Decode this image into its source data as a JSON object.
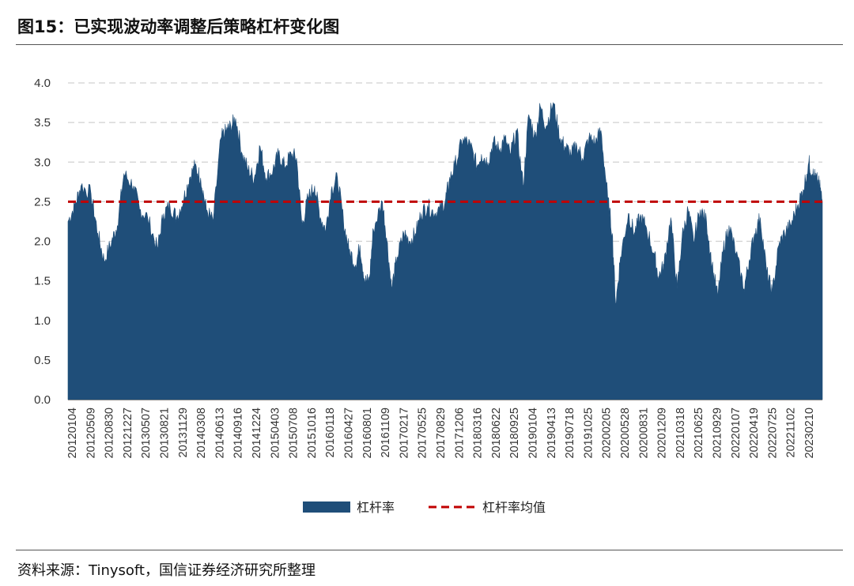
{
  "header": {
    "title": "图15：已实现波动率调整后策略杠杆变化图"
  },
  "footer": {
    "source": "资料来源：Tinysoft，国信证券经济研究所整理"
  },
  "colors": {
    "area": "#1f4e79",
    "mean_line": "#c00000",
    "grid": "#d0d0d0",
    "axis": "#888888"
  },
  "chart_data": {
    "type": "area",
    "title": "图15：已实现波动率调整后策略杠杆变化图",
    "xlabel": "",
    "ylabel": "",
    "ylim": [
      0,
      4.0
    ],
    "yticks": [
      "0.0",
      "0.5",
      "1.0",
      "1.5",
      "2.0",
      "2.5",
      "3.0",
      "3.5",
      "4.0"
    ],
    "grid": "horizontal dashed",
    "legend_position": "bottom",
    "x_tick_labels": [
      "20120104",
      "20120509",
      "20120830",
      "20121227",
      "20130507",
      "20130821",
      "20131129",
      "20140308",
      "20140613",
      "20140916",
      "20141224",
      "20150403",
      "20150708",
      "20151016",
      "20160118",
      "20160427",
      "20160801",
      "20161109",
      "20170217",
      "20170525",
      "20170829",
      "20171206",
      "20180316",
      "20180622",
      "20180925",
      "20190104",
      "20190413",
      "20190718",
      "20191025",
      "20200205",
      "20200528",
      "20200831",
      "20201209",
      "20210318",
      "20210625",
      "20210929",
      "20220107",
      "20220419",
      "20220725",
      "20221102",
      "20230210"
    ],
    "series": [
      {
        "name": "杠杆率",
        "kind": "area",
        "points": [
          [
            "20120104",
            2.25
          ],
          [
            "20120210",
            2.45
          ],
          [
            "20120315",
            2.7
          ],
          [
            "20120509",
            2.6
          ],
          [
            "20120615",
            2.1
          ],
          [
            "20120720",
            1.75
          ],
          [
            "20120830",
            2.0
          ],
          [
            "20120930",
            2.2
          ],
          [
            "20121105",
            2.85
          ],
          [
            "20121227",
            2.7
          ],
          [
            "20130130",
            2.4
          ],
          [
            "20130315",
            2.3
          ],
          [
            "20130507",
            1.9
          ],
          [
            "20130610",
            2.35
          ],
          [
            "20130715",
            2.45
          ],
          [
            "20130821",
            2.3
          ],
          [
            "20130930",
            2.55
          ],
          [
            "20131030",
            2.8
          ],
          [
            "20131129",
            2.95
          ],
          [
            "20131230",
            2.8
          ],
          [
            "20140130",
            2.4
          ],
          [
            "20140308",
            2.25
          ],
          [
            "20140420",
            3.3
          ],
          [
            "20140520",
            3.4
          ],
          [
            "20140613",
            3.45
          ],
          [
            "20140710",
            3.55
          ],
          [
            "20140815",
            3.1
          ],
          [
            "20140916",
            2.9
          ],
          [
            "20141020",
            2.8
          ],
          [
            "20141120",
            3.2
          ],
          [
            "20141224",
            2.8
          ],
          [
            "20150130",
            2.9
          ],
          [
            "20150301",
            3.1
          ],
          [
            "20150403",
            2.95
          ],
          [
            "20150510",
            3.1
          ],
          [
            "20150608",
            3.05
          ],
          [
            "20150708",
            2.2
          ],
          [
            "20150810",
            2.55
          ],
          [
            "20150915",
            2.7
          ],
          [
            "20151016",
            2.3
          ],
          [
            "20151115",
            2.15
          ],
          [
            "20151215",
            2.65
          ],
          [
            "20160118",
            2.8
          ],
          [
            "20160220",
            2.25
          ],
          [
            "20160320",
            1.9
          ],
          [
            "20160427",
            1.7
          ],
          [
            "20160520",
            1.95
          ],
          [
            "20160615",
            1.5
          ],
          [
            "20160710",
            1.5
          ],
          [
            "20160801",
            2.15
          ],
          [
            "20160920",
            2.5
          ],
          [
            "20161015",
            2.0
          ],
          [
            "20161109",
            1.4
          ],
          [
            "20161210",
            1.8
          ],
          [
            "20170115",
            2.1
          ],
          [
            "20170217",
            2.0
          ],
          [
            "20170320",
            2.1
          ],
          [
            "20170420",
            2.35
          ],
          [
            "20170525",
            2.45
          ],
          [
            "20170630",
            2.35
          ],
          [
            "20170730",
            2.4
          ],
          [
            "20170829",
            2.5
          ],
          [
            "20170920",
            2.75
          ],
          [
            "20171020",
            2.95
          ],
          [
            "20171206",
            3.3
          ],
          [
            "20180115",
            3.2
          ],
          [
            "20180220",
            2.95
          ],
          [
            "20180316",
            3.1
          ],
          [
            "20180420",
            3.0
          ],
          [
            "20180520",
            3.25
          ],
          [
            "20180622",
            3.15
          ],
          [
            "20180720",
            3.3
          ],
          [
            "20180820",
            3.1
          ],
          [
            "20180925",
            3.4
          ],
          [
            "20181030",
            2.7
          ],
          [
            "20181130",
            3.6
          ],
          [
            "20190104",
            3.3
          ],
          [
            "20190201",
            3.7
          ],
          [
            "20190305",
            3.45
          ],
          [
            "20190413",
            3.75
          ],
          [
            "20190520",
            3.3
          ],
          [
            "20190615",
            3.2
          ],
          [
            "20190718",
            3.1
          ],
          [
            "20190820",
            3.2
          ],
          [
            "20190920",
            3.05
          ],
          [
            "20191025",
            3.3
          ],
          [
            "20191130",
            3.25
          ],
          [
            "20191230",
            3.4
          ],
          [
            "20200205",
            2.55
          ],
          [
            "20200301",
            2.1
          ],
          [
            "20200320",
            1.2
          ],
          [
            "20200415",
            1.8
          ],
          [
            "20200528",
            2.35
          ],
          [
            "20200630",
            2.1
          ],
          [
            "20200731",
            2.3
          ],
          [
            "20200831",
            2.2
          ],
          [
            "20201015",
            1.85
          ],
          [
            "20201109",
            1.55
          ],
          [
            "20201209",
            1.7
          ],
          [
            "20210115",
            2.3
          ],
          [
            "20210220",
            1.4
          ],
          [
            "20210318",
            2.05
          ],
          [
            "20210420",
            2.4
          ],
          [
            "20210520",
            2.0
          ],
          [
            "20210625",
            2.4
          ],
          [
            "20210730",
            2.25
          ],
          [
            "20210829",
            1.7
          ],
          [
            "20210929",
            1.3
          ],
          [
            "20211030",
            1.9
          ],
          [
            "20211130",
            2.2
          ],
          [
            "20220107",
            1.85
          ],
          [
            "20220220",
            1.4
          ],
          [
            "20220320",
            1.75
          ],
          [
            "20220419",
            2.1
          ],
          [
            "20220520",
            2.3
          ],
          [
            "20220625",
            1.6
          ],
          [
            "20220725",
            1.35
          ],
          [
            "20220830",
            1.95
          ],
          [
            "20220930",
            2.1
          ],
          [
            "20221102",
            2.2
          ],
          [
            "20221210",
            2.45
          ],
          [
            "20230110",
            2.65
          ],
          [
            "20230210",
            3.0
          ],
          [
            "20230301",
            2.85
          ],
          [
            "20230320",
            2.8
          ],
          [
            "20230410",
            2.7
          ],
          [
            "20230425",
            2.5
          ]
        ]
      },
      {
        "name": "杠杆率均值",
        "kind": "dashed_line",
        "value": 2.5
      }
    ]
  }
}
